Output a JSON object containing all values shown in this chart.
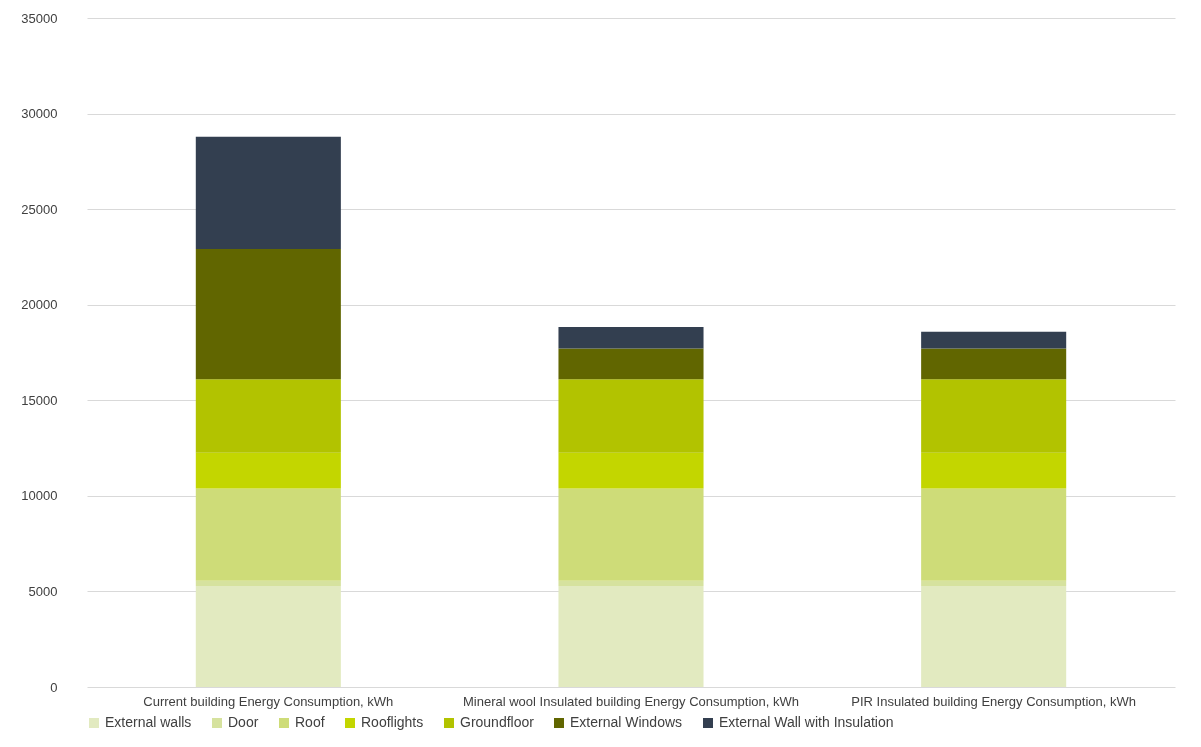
{
  "chart_data": {
    "type": "bar",
    "stacked": true,
    "categories": [
      "Current building Energy Consumption, kWh",
      "Mineral wool Insulated building Energy Consumption, kWh",
      "PIR Insulated building Energy Consumption, kWh"
    ],
    "series": [
      {
        "name": "External walls",
        "color": "#e2eac0",
        "values": [
          5280,
          5280,
          5280
        ]
      },
      {
        "name": "Door",
        "color": "#d6e29e",
        "values": [
          280,
          280,
          280
        ]
      },
      {
        "name": "Roof",
        "color": "#cedc78",
        "values": [
          4820,
          4820,
          4820
        ]
      },
      {
        "name": "Rooflights",
        "color": "#c3d600",
        "values": [
          1880,
          1880,
          1880
        ]
      },
      {
        "name": "Groundfloor",
        "color": "#b2c300",
        "values": [
          3840,
          3840,
          3840
        ]
      },
      {
        "name": "External Windows",
        "color": "#616600",
        "values": [
          6820,
          1610,
          1610
        ]
      },
      {
        "name": "External Wall with Insulation",
        "color": "#333f50",
        "values": [
          5870,
          1130,
          870
        ]
      }
    ],
    "ylim": [
      0,
      35000
    ],
    "yticks": [
      0,
      5000,
      10000,
      15000,
      20000,
      25000,
      30000,
      35000
    ],
    "grid": "y",
    "legend": "bottom"
  }
}
